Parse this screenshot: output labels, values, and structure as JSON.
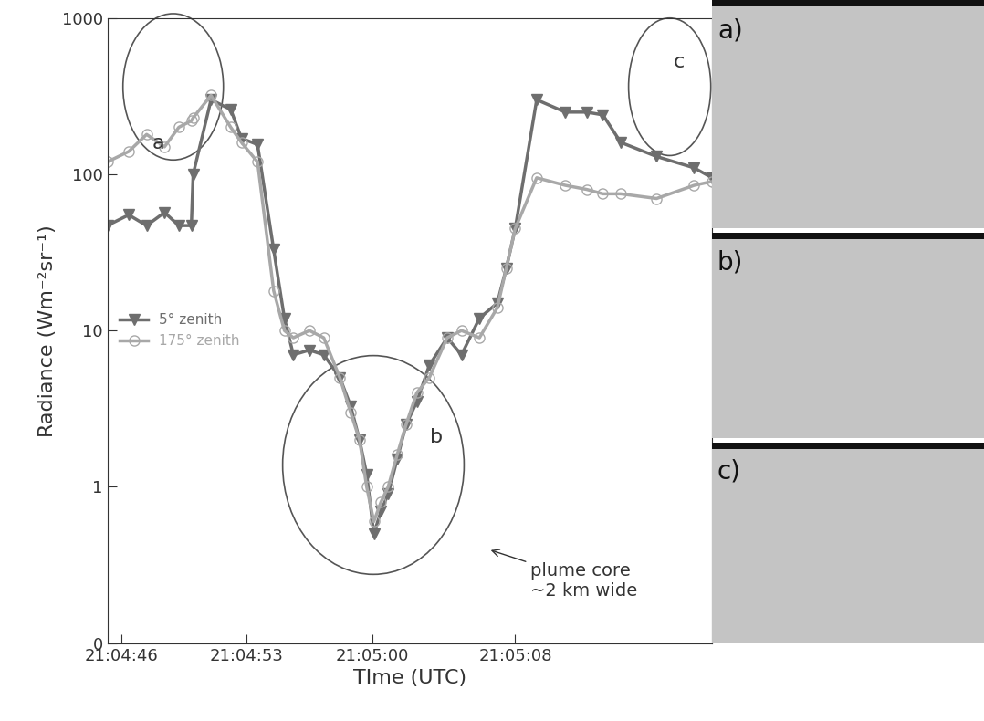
{
  "chart_data": {
    "type": "line",
    "x": [
      45.2,
      46.4,
      47.4,
      48.4,
      49.2,
      49.9,
      50.0,
      51.0,
      52.1,
      52.7,
      53.6,
      54.5,
      55.1,
      55.6,
      56.5,
      57.3,
      58.2,
      58.8,
      59.3,
      59.7,
      60.1,
      60.5,
      60.9,
      61.4,
      61.9,
      62.5,
      63.2,
      64.2,
      65.0,
      66.0,
      67.0,
      67.5,
      68.0,
      69.2,
      70.8,
      72.0,
      72.9,
      73.9,
      75.9,
      78.0,
      79.0
    ],
    "series": [
      {
        "name": "5° zenith",
        "color": "#6e6e6e",
        "marker": "triangle_down",
        "line_style": "solid",
        "values": [
          47,
          55,
          47,
          57,
          47,
          47,
          100,
          300,
          260,
          170,
          155,
          33,
          12,
          7,
          7.5,
          7,
          5,
          3.3,
          2,
          1.2,
          0.5,
          0.7,
          0.9,
          1.5,
          2.5,
          3.5,
          6,
          9,
          7,
          12,
          15,
          25,
          45,
          300,
          250,
          250,
          240,
          160,
          130,
          110,
          95
        ]
      },
      {
        "name": "175° zenith",
        "color": "#a8a8a8",
        "marker": "circle",
        "line_style": "solid",
        "values": [
          120,
          140,
          180,
          150,
          200,
          220,
          230,
          320,
          200,
          160,
          120,
          18,
          10,
          9,
          10,
          9,
          5,
          3,
          2,
          1,
          0.6,
          0.8,
          1,
          1.6,
          2.5,
          4,
          5,
          9,
          10,
          9,
          14,
          25,
          45,
          95,
          85,
          80,
          75,
          75,
          70,
          85,
          90
        ]
      }
    ],
    "xlim": [
      45.2,
      79.0
    ],
    "xticks": [
      {
        "value": 46,
        "label": "21:04:46"
      },
      {
        "value": 53,
        "label": "21:04:53"
      },
      {
        "value": 60,
        "label": "21:05:00"
      },
      {
        "value": 68,
        "label": "21:05:08"
      }
    ],
    "ylim": [
      0.1,
      1000
    ],
    "yticks": [
      {
        "value": 0.1,
        "label": "0"
      },
      1,
      10,
      100,
      1000
    ],
    "log": "y",
    "legend": "center left",
    "x_label": "TIme (UTC)",
    "y_label": "Radiance (Wm⁻²sr⁻¹)",
    "annotations": [
      "a",
      "b",
      "c",
      "plume core\n~2 km wide"
    ],
    "panels": [
      "a)",
      "b)",
      "c)"
    ]
  }
}
